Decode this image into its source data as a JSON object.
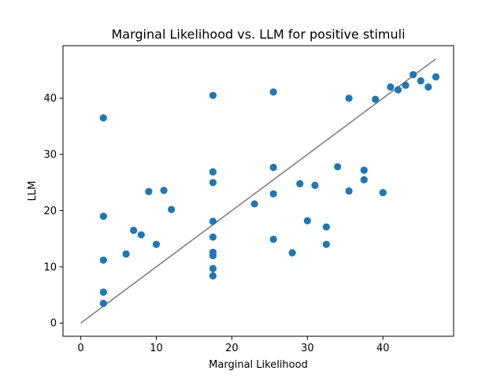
{
  "chart_data": {
    "type": "scatter",
    "title": "Marginal Likelihood vs. LLM for positive stimuli",
    "xlabel": "Marginal Likelihood",
    "ylabel": "LLM",
    "xlim": [
      -2.35,
      49.35
    ],
    "ylim": [
      -2.35,
      49.35
    ],
    "xticks": [
      0,
      10,
      20,
      30,
      40
    ],
    "yticks": [
      0,
      10,
      20,
      30,
      40
    ],
    "grid": false,
    "colors": {
      "points": "#1f77b4",
      "line": "#808080",
      "axes": "#000000"
    },
    "reference_line": {
      "x": [
        0,
        47
      ],
      "y": [
        0,
        47
      ]
    },
    "points": [
      {
        "x": 3,
        "y": 36.5
      },
      {
        "x": 3,
        "y": 19.0
      },
      {
        "x": 3,
        "y": 11.2
      },
      {
        "x": 3,
        "y": 5.5
      },
      {
        "x": 3,
        "y": 3.5
      },
      {
        "x": 6,
        "y": 12.3
      },
      {
        "x": 7,
        "y": 16.5
      },
      {
        "x": 8,
        "y": 15.7
      },
      {
        "x": 9,
        "y": 23.4
      },
      {
        "x": 10,
        "y": 14.0
      },
      {
        "x": 11,
        "y": 23.6
      },
      {
        "x": 12,
        "y": 20.2
      },
      {
        "x": 17.5,
        "y": 40.5
      },
      {
        "x": 17.5,
        "y": 26.9
      },
      {
        "x": 17.5,
        "y": 25.0
      },
      {
        "x": 17.5,
        "y": 18.1
      },
      {
        "x": 17.5,
        "y": 15.3
      },
      {
        "x": 17.5,
        "y": 12.6
      },
      {
        "x": 17.5,
        "y": 12.0
      },
      {
        "x": 17.5,
        "y": 9.7
      },
      {
        "x": 17.5,
        "y": 8.4
      },
      {
        "x": 23,
        "y": 21.2
      },
      {
        "x": 25.5,
        "y": 41.1
      },
      {
        "x": 25.5,
        "y": 27.7
      },
      {
        "x": 25.5,
        "y": 23.0
      },
      {
        "x": 25.5,
        "y": 14.9
      },
      {
        "x": 28,
        "y": 12.5
      },
      {
        "x": 29,
        "y": 24.8
      },
      {
        "x": 30,
        "y": 18.2
      },
      {
        "x": 31,
        "y": 24.5
      },
      {
        "x": 32.5,
        "y": 17.1
      },
      {
        "x": 32.5,
        "y": 14.0
      },
      {
        "x": 34,
        "y": 27.8
      },
      {
        "x": 35.5,
        "y": 40.0
      },
      {
        "x": 35.5,
        "y": 23.5
      },
      {
        "x": 37.5,
        "y": 27.2
      },
      {
        "x": 37.5,
        "y": 25.5
      },
      {
        "x": 39,
        "y": 39.8
      },
      {
        "x": 40,
        "y": 23.2
      },
      {
        "x": 41,
        "y": 42.0
      },
      {
        "x": 42,
        "y": 41.5
      },
      {
        "x": 43,
        "y": 42.3
      },
      {
        "x": 44,
        "y": 44.2
      },
      {
        "x": 45,
        "y": 43.1
      },
      {
        "x": 46,
        "y": 42.0
      },
      {
        "x": 47,
        "y": 43.8
      }
    ]
  }
}
